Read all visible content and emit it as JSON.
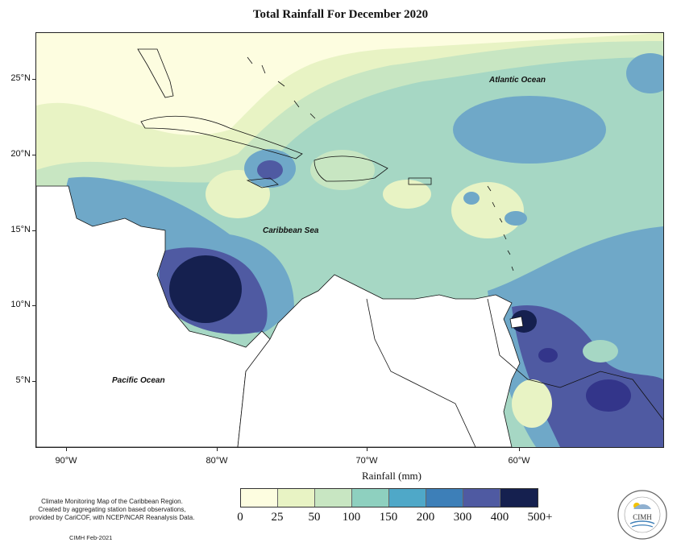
{
  "title": "Total Rainfall For December 2020",
  "axes": {
    "lat_labels": [
      "25°N",
      "20°N",
      "15°N",
      "10°N",
      "5°N"
    ],
    "lon_labels": [
      "90°W",
      "80°W",
      "70°W",
      "60°W"
    ]
  },
  "places": {
    "atlantic": "Atlantic Ocean",
    "caribbean": "Caribbean Sea",
    "pacific": "Pacific Ocean"
  },
  "legend": {
    "title": "Rainfall (mm)",
    "ticks": [
      "0",
      "25",
      "50",
      "100",
      "150",
      "200",
      "300",
      "400",
      "500+"
    ],
    "colors": [
      "#fdfde0",
      "#e8f3c4",
      "#c8e6c2",
      "#8ed0bf",
      "#4fa8c8",
      "#3d7fb8",
      "#4f5aa2",
      "#33358a",
      "#15204f"
    ]
  },
  "footer": {
    "description": [
      "Climate Monitoring Map of the Caribbean Region.",
      "Created by aggregating station based observations,",
      "provided by CariCOF, with NCEP/NCAR Reanalysis Data."
    ],
    "credit": "CIMH Feb-2021",
    "logo_text": "CIMH"
  }
}
